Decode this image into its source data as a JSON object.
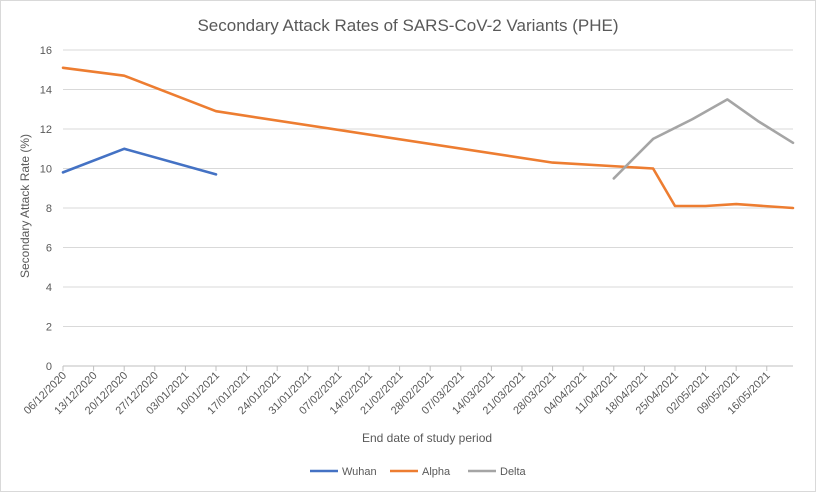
{
  "chart_data": {
    "type": "line",
    "title": "Secondary Attack Rates of SARS-CoV-2 Variants (PHE)",
    "xlabel": "End date of study period",
    "ylabel": "Secondary Attack Rate (%)",
    "ylim": [
      0,
      16
    ],
    "yticks": [
      "0",
      "2",
      "4",
      "6",
      "8",
      "10",
      "12",
      "14",
      "16"
    ],
    "x_start": "2020-12-06",
    "x_end": "2021-05-22",
    "x_tick_labels": [
      "06/12/2020",
      "13/12/2020",
      "20/12/2020",
      "27/12/2020",
      "03/01/2021",
      "10/01/2021",
      "17/01/2021",
      "24/01/2021",
      "31/01/2021",
      "07/02/2021",
      "14/02/2021",
      "21/02/2021",
      "28/02/2021",
      "07/03/2021",
      "14/03/2021",
      "21/03/2021",
      "28/03/2021",
      "04/04/2021",
      "11/04/2021",
      "18/04/2021",
      "25/04/2021",
      "02/05/2021",
      "09/05/2021",
      "16/05/2021"
    ],
    "grid": true,
    "legend_position": "bottom",
    "series": [
      {
        "name": "Wuhan",
        "color": "#4472c4",
        "points": [
          {
            "x": "2020-12-06",
            "y": 9.8
          },
          {
            "x": "2020-12-20",
            "y": 11.0
          },
          {
            "x": "2021-01-10",
            "y": 9.7
          }
        ]
      },
      {
        "name": "Alpha",
        "color": "#ed7d31",
        "points": [
          {
            "x": "2020-12-06",
            "y": 15.1
          },
          {
            "x": "2020-12-20",
            "y": 14.7
          },
          {
            "x": "2021-01-10",
            "y": 12.9
          },
          {
            "x": "2021-03-28",
            "y": 10.3
          },
          {
            "x": "2021-04-20",
            "y": 10.0
          },
          {
            "x": "2021-04-25",
            "y": 8.1
          },
          {
            "x": "2021-05-02",
            "y": 8.1
          },
          {
            "x": "2021-05-09",
            "y": 8.2
          },
          {
            "x": "2021-05-22",
            "y": 8.0
          }
        ]
      },
      {
        "name": "Delta",
        "color": "#a5a5a5",
        "points": [
          {
            "x": "2021-04-11",
            "y": 9.5
          },
          {
            "x": "2021-04-20",
            "y": 11.5
          },
          {
            "x": "2021-04-29",
            "y": 12.5
          },
          {
            "x": "2021-05-07",
            "y": 13.5
          },
          {
            "x": "2021-05-14",
            "y": 12.4
          },
          {
            "x": "2021-05-22",
            "y": 11.3
          }
        ]
      }
    ]
  }
}
